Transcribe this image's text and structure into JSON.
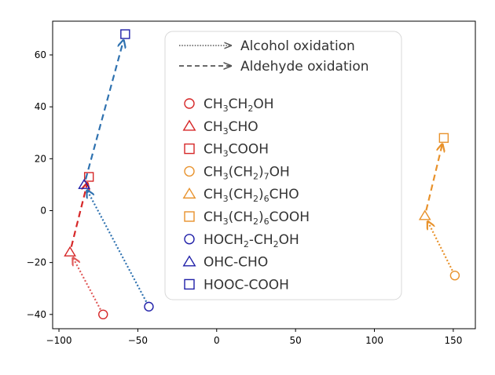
{
  "chart_data": {
    "type": "scatter",
    "title": "",
    "xlabel": "",
    "ylabel": "",
    "xlim": [
      -104,
      164
    ],
    "ylim": [
      -45.5,
      73
    ],
    "xticks": [
      -100,
      -50,
      0,
      50,
      100,
      150
    ],
    "yticks": [
      -40,
      -20,
      0,
      20,
      40,
      60
    ],
    "xtick_labels": [
      "−100",
      "−50",
      "0",
      "50",
      "100",
      "150"
    ],
    "ytick_labels": [
      "−40",
      "−20",
      "0",
      "20",
      "40",
      "60"
    ],
    "grid": false,
    "legend_position": "top-center",
    "colors": {
      "red": "#d62728",
      "red_light": "#e05a5a",
      "orange": "#e8922c",
      "blue": "#1f1fa8",
      "steel": "#2f72b0"
    },
    "arrow_legend": [
      {
        "label": "Alcohol oxidation",
        "style": "dotted"
      },
      {
        "label": "Aldehyde oxidation",
        "style": "dashed"
      }
    ],
    "series": [
      {
        "name": "CH3CH2OH",
        "label_parts": [
          "CH",
          "3",
          "CH",
          "2",
          "OH"
        ],
        "marker": "circle",
        "color_key": "red",
        "x": -72,
        "y": -40
      },
      {
        "name": "CH3CHO",
        "label_parts": [
          "CH",
          "3",
          "CHO"
        ],
        "marker": "triangle",
        "color_key": "red",
        "x": -93,
        "y": -16
      },
      {
        "name": "CH3COOH",
        "label_parts": [
          "CH",
          "3",
          "COOH"
        ],
        "marker": "square",
        "color_key": "red",
        "x": -81,
        "y": 13
      },
      {
        "name": "CH3(CH2)7OH",
        "label_parts": [
          "CH",
          "3",
          "(CH",
          "2",
          ")",
          "7",
          "OH"
        ],
        "marker": "circle",
        "color_key": "orange",
        "x": 151,
        "y": -25
      },
      {
        "name": "CH3(CH2)6CHO",
        "label_parts": [
          "CH",
          "3",
          "(CH",
          "2",
          ")",
          "6",
          "CHO"
        ],
        "marker": "triangle",
        "color_key": "orange",
        "x": 132,
        "y": -2
      },
      {
        "name": "CH3(CH2)6COOH",
        "label_parts": [
          "CH",
          "3",
          "(CH",
          "2",
          ")",
          "6",
          "COOH"
        ],
        "marker": "square",
        "color_key": "orange",
        "x": 144,
        "y": 28
      },
      {
        "name": "HOCH2-CH2OH",
        "label_parts": [
          "HOCH",
          "2",
          "-CH",
          "2",
          "OH"
        ],
        "marker": "circle",
        "color_key": "blue",
        "x": -43,
        "y": -37
      },
      {
        "name": "OHC-CHO",
        "label_parts": [
          "OHC-CHO"
        ],
        "marker": "triangle",
        "color_key": "blue",
        "x": -84,
        "y": 10
      },
      {
        "name": "HOOC-COOH",
        "label_parts": [
          "HOOC-COOH"
        ],
        "marker": "square",
        "color_key": "blue",
        "x": -58,
        "y": 68
      }
    ],
    "arrows": [
      {
        "from": [
          -72,
          -40
        ],
        "to": [
          -93,
          -16
        ],
        "style": "dotted",
        "color_key": "red_light"
      },
      {
        "from": [
          -93,
          -16
        ],
        "to": [
          -81,
          13
        ],
        "style": "dashed",
        "color_key": "red"
      },
      {
        "from": [
          151,
          -25
        ],
        "to": [
          132,
          -2
        ],
        "style": "dotted",
        "color_key": "orange"
      },
      {
        "from": [
          132,
          -2
        ],
        "to": [
          144,
          28
        ],
        "style": "dashed",
        "color_key": "orange"
      },
      {
        "from": [
          -43,
          -37
        ],
        "to": [
          -84,
          10
        ],
        "style": "dotted",
        "color_key": "steel"
      },
      {
        "from": [
          -84,
          10
        ],
        "to": [
          -58,
          68
        ],
        "style": "dashed",
        "color_key": "steel"
      }
    ]
  }
}
